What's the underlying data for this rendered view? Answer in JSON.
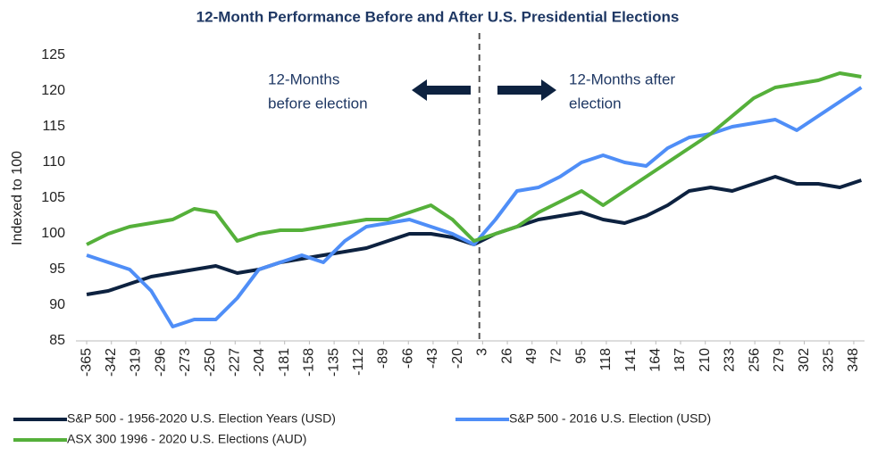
{
  "chart_data": {
    "type": "line",
    "title": "12-Month Performance Before and After U.S. Presidential Elections",
    "y_label": "Indexed to 100",
    "annotations": [
      "12-Months",
      "before election",
      "12-Months after",
      "election"
    ],
    "x": [
      -365,
      -345,
      -325,
      -305,
      -285,
      -265,
      -245,
      -225,
      -205,
      -185,
      -165,
      -145,
      -125,
      -105,
      -85,
      -65,
      -45,
      -25,
      -5,
      15,
      35,
      55,
      75,
      95,
      115,
      135,
      155,
      175,
      195,
      215,
      235,
      255,
      275,
      295,
      315,
      335,
      355
    ],
    "series": [
      {
        "name": "S&P 500 - 1956-2020 U.S. Election Years (USD)",
        "color": "#0d2240",
        "values": [
          91.5,
          92,
          93,
          94,
          94.5,
          95,
          95.5,
          94.5,
          95,
          96,
          96.5,
          97,
          97.5,
          98,
          99,
          100,
          100,
          99.5,
          98.5,
          100,
          101,
          102,
          102.5,
          103,
          102,
          101.5,
          102.5,
          104,
          106,
          106.5,
          106,
          107,
          108,
          107,
          107,
          106.5,
          107.5
        ]
      },
      {
        "name": "S&P 500 - 2016 U.S. Election (USD)",
        "color": "#4f8ef7",
        "values": [
          97,
          96,
          95,
          92,
          87,
          88,
          88,
          91,
          95,
          96,
          97,
          96,
          99,
          101,
          101.5,
          102,
          101,
          100,
          98.5,
          102,
          106,
          106.5,
          108,
          110,
          111,
          110,
          109.5,
          112,
          113.5,
          114,
          115,
          115.5,
          116,
          114.5,
          116.5,
          118.5,
          120.5
        ]
      },
      {
        "name": "ASX 300 1996 - 2020 U.S. Elections (AUD)",
        "color": "#55b03a",
        "values": [
          98.5,
          100,
          101,
          101.5,
          102,
          103.5,
          103,
          99,
          100,
          100.5,
          100.5,
          101,
          101.5,
          102,
          102,
          103,
          104,
          102,
          99,
          100,
          101,
          103,
          104.5,
          106,
          104,
          106,
          108,
          110,
          112,
          114,
          116.5,
          119,
          120.5,
          121,
          121.5,
          122.5,
          122
        ]
      }
    ],
    "xlim": [
      -375,
      358
    ],
    "xticks": [
      -365,
      -342,
      -319,
      -296,
      -273,
      -250,
      -227,
      -204,
      -181,
      -158,
      -135,
      -112,
      -89,
      -66,
      -43,
      -20,
      3,
      26,
      49,
      72,
      95,
      118,
      141,
      164,
      187,
      210,
      233,
      256,
      279,
      302,
      325,
      348
    ],
    "ylim": [
      85,
      125
    ],
    "yticks": [
      85,
      90,
      95,
      100,
      105,
      110,
      115,
      120,
      125
    ],
    "grid": false
  }
}
